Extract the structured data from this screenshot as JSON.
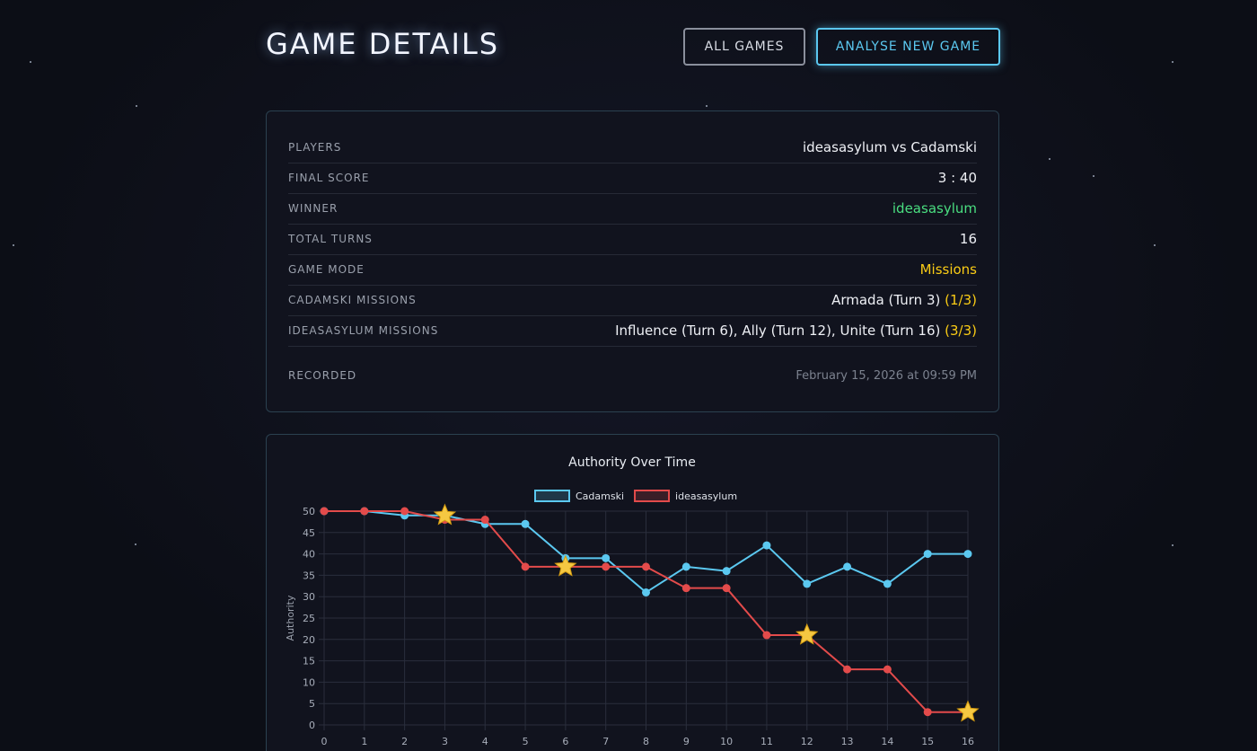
{
  "header": {
    "title": "GAME DETAILS",
    "buttons": [
      "ALL GAMES",
      "ANALYSE NEW GAME"
    ]
  },
  "details": [
    {
      "label": "PLAYERS",
      "value": "ideasasylum vs Cadamski"
    },
    {
      "label": "FINAL SCORE",
      "value": "3 : 40"
    },
    {
      "label": "WINNER",
      "value": "ideasasylum"
    },
    {
      "label": "TOTAL TURNS",
      "value": "16"
    },
    {
      "label": "GAME MODE",
      "value": "Missions"
    },
    {
      "label": "CADAMSKI MISSIONS",
      "value": "Armada (Turn 3)",
      "count": "(1/3)"
    },
    {
      "label": "IDEASASYLUM MISSIONS",
      "value": "Influence (Turn 6), Ally (Turn 12), Unite (Turn 16)",
      "count": "(3/3)"
    },
    {
      "label": "RECORDED",
      "value": "February 15, 2026 at 09:59 PM"
    }
  ],
  "chart_data": {
    "type": "line",
    "title": "Authority Over Time",
    "y_label": "Authority",
    "x": [
      0,
      1,
      2,
      3,
      4,
      5,
      6,
      7,
      8,
      9,
      10,
      11,
      12,
      13,
      14,
      15,
      16
    ],
    "xlim": [
      0,
      16
    ],
    "xticks": [
      0,
      1,
      2,
      3,
      4,
      5,
      6,
      7,
      8,
      9,
      10,
      11,
      12,
      13,
      14,
      15,
      16
    ],
    "ylim": [
      0,
      50
    ],
    "yticks": [
      0,
      5,
      10,
      15,
      20,
      25,
      30,
      35,
      40,
      45,
      50
    ],
    "grid": true,
    "series": [
      {
        "name": "Cadamski",
        "color": "#5bc8f0",
        "values": [
          50,
          50,
          49,
          49,
          47,
          47,
          39,
          39,
          31,
          37,
          36,
          42,
          33,
          37,
          33,
          40,
          40
        ]
      },
      {
        "name": "ideasasylum",
        "color": "#e34b4b",
        "values": [
          50,
          50,
          50,
          48,
          48,
          37,
          37,
          37,
          37,
          32,
          32,
          21,
          21,
          13,
          13,
          3,
          3
        ]
      }
    ],
    "markers": [
      {
        "series": 0,
        "x": 3
      },
      {
        "series": 1,
        "x": 6
      },
      {
        "series": 1,
        "x": 12
      },
      {
        "series": 1,
        "x": 16
      }
    ],
    "marker_color": "#f5c842"
  }
}
